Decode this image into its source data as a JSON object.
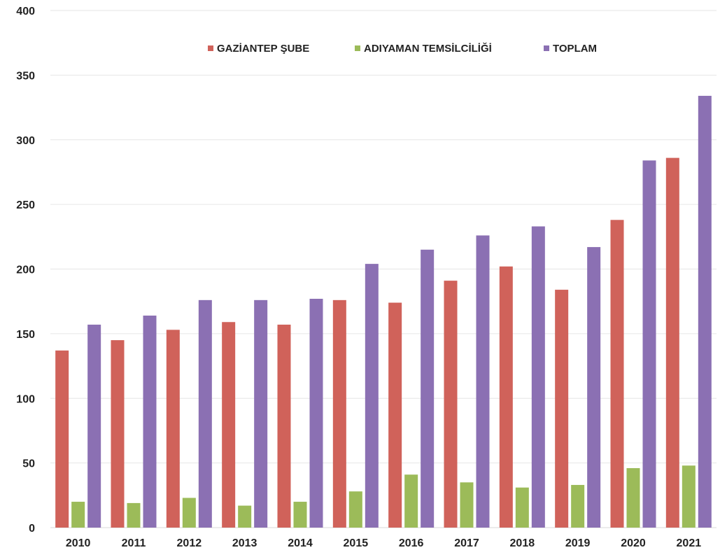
{
  "chart_data": {
    "type": "bar",
    "title": "",
    "xlabel": "",
    "ylabel": "",
    "ylim": [
      0,
      400
    ],
    "yticks": [
      0,
      50,
      100,
      150,
      200,
      250,
      300,
      350,
      400
    ],
    "grid": true,
    "legend_position": "top-center",
    "categories": [
      "2010",
      "2011",
      "2012",
      "2013",
      "2014",
      "2015",
      "2016",
      "2017",
      "2018",
      "2019",
      "2020",
      "2021"
    ],
    "series": [
      {
        "name": "GAZİANTEP ŞUBE",
        "color": "#d0625a",
        "values": [
          137,
          145,
          153,
          159,
          157,
          176,
          174,
          191,
          202,
          184,
          238,
          286
        ]
      },
      {
        "name": "ADIYAMAN TEMSİLCİLİĞİ",
        "color": "#9cbb59",
        "values": [
          20,
          19,
          23,
          17,
          20,
          28,
          41,
          35,
          31,
          33,
          46,
          48
        ]
      },
      {
        "name": "TOPLAM",
        "color": "#8b70b3",
        "values": [
          157,
          164,
          176,
          176,
          177,
          204,
          215,
          226,
          233,
          217,
          284,
          334
        ]
      }
    ]
  }
}
